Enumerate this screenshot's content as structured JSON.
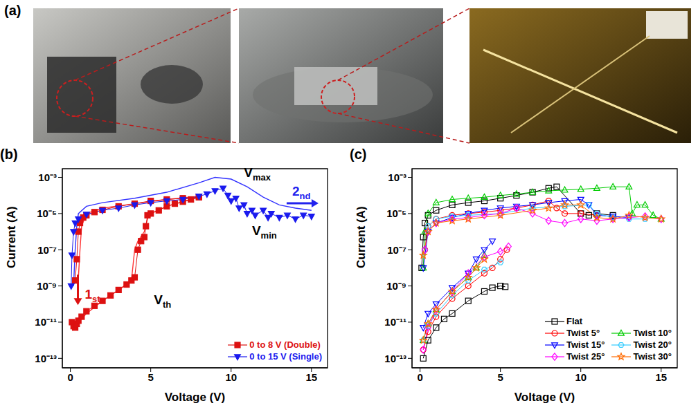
{
  "photo_panel": {
    "label": "(a)"
  },
  "chart_data": [
    {
      "type": "line",
      "title": "(b)",
      "x_label": "Voltage (V)",
      "y_label": "Current (A)",
      "log": "y",
      "grid": false,
      "legend": "lower right",
      "xlim": [
        -0.5,
        16
      ],
      "xticks": [
        0,
        5,
        10,
        15
      ],
      "ylim": [
        3e-14,
        0.003
      ],
      "yticks": [
        {
          "value": 1e-13,
          "label": "10⁻¹³"
        },
        {
          "value": 1e-11,
          "label": "10⁻¹¹"
        },
        {
          "value": 1e-09,
          "label": "10⁻⁹"
        },
        {
          "value": 1e-07,
          "label": "10⁻⁷"
        },
        {
          "value": 1e-05,
          "label": "10⁻⁵"
        },
        {
          "value": 0.001,
          "label": "10⁻³"
        }
      ],
      "series": [
        {
          "color": "#ff3333",
          "marker": "none",
          "line_style": "solid",
          "x": [
            0.5,
            1,
            2,
            3,
            3.8,
            4,
            4.2,
            4.6,
            4.8,
            5,
            6,
            7,
            8,
            null,
            0.5,
            0.6,
            0.7,
            1,
            2,
            4,
            6,
            8
          ],
          "values": [
            1e-11,
            3e-11,
            1.5e-10,
            6e-10,
            2e-09,
            1e-07,
            3e-07,
            1e-06,
            5e-06,
            1e-05,
            2.5e-05,
            4.5e-05,
            8e-05,
            null,
            3e-09,
            1e-07,
            2e-06,
            1e-05,
            2e-05,
            3.5e-05,
            6e-05,
            9e-05
          ]
        },
        {
          "color": "#3333ff",
          "marker": "none",
          "line_style": "solid",
          "x": [
            0.2,
            0.3,
            0.4,
            0.5,
            1,
            2,
            4,
            6,
            8,
            9,
            10,
            11,
            12,
            13,
            14,
            15
          ],
          "values": [
            1e-09,
            1e-07,
            2e-06,
            1e-05,
            2.5e-05,
            4e-05,
            7e-05,
            0.00015,
            0.0005,
            0.001,
            0.0008,
            0.0003,
            8e-05,
            3e-05,
            2e-05,
            1.5e-05
          ]
        },
        {
          "name": "0 to 8 V (Double)",
          "color": "#dd1111",
          "marker": "square",
          "line_style": "solid",
          "x": [
            0.1,
            0.2,
            0.3,
            0.4,
            0.5,
            0.7,
            1,
            1.5,
            2,
            2.5,
            3,
            3.5,
            3.8,
            4,
            4.2,
            4.4,
            4.6,
            4.7,
            4.8,
            5,
            5.5,
            6,
            6.5,
            7,
            7.5,
            8,
            null,
            0.3,
            0.4,
            0.5,
            0.6,
            0.8,
            1,
            1.5,
            2,
            3,
            4,
            5,
            6,
            7,
            8
          ],
          "values": [
            1e-11,
            6e-12,
            5e-12,
            8e-12,
            1.2e-11,
            2e-11,
            4e-11,
            8e-11,
            1.5e-10,
            3e-10,
            6e-10,
            1.2e-09,
            2e-09,
            3e-09,
            1e-07,
            3e-07,
            5e-07,
            2e-06,
            8e-06,
            1e-05,
            1.5e-05,
            2.5e-05,
            3.5e-05,
            4.5e-05,
            6e-05,
            8e-05,
            null,
            2e-09,
            3e-08,
            1e-06,
            3e-06,
            6e-06,
            8e-06,
            1.2e-05,
            1.6e-05,
            2.5e-05,
            3.5e-05,
            5e-05,
            6e-05,
            7e-05,
            8e-05
          ]
        },
        {
          "name": "0 to 15 V (Single)",
          "color": "#1a1aee",
          "marker": "triangle-down",
          "line_style": "solid",
          "x": [
            0.05,
            0.1,
            0.2,
            0.3,
            0.5,
            1,
            2,
            3,
            4,
            5,
            6,
            7,
            8,
            8.5,
            9,
            9.5,
            9.8,
            10,
            10.3,
            10.5,
            10.8,
            11,
            11.3,
            11.5,
            12,
            12.3,
            12.5,
            13,
            13.5,
            14,
            14.5,
            15
          ],
          "values": [
            1e-09,
            5e-08,
            1e-06,
            3e-06,
            5e-06,
            9e-06,
            1.5e-05,
            2e-05,
            3e-05,
            4e-05,
            5e-05,
            6e-05,
            9e-05,
            0.00012,
            0.00018,
            0.00025,
            0.0001,
            5e-05,
            7e-05,
            2e-05,
            3e-05,
            1e-05,
            1.5e-05,
            8e-06,
            1.5e-05,
            6e-06,
            1e-05,
            6e-06,
            8e-06,
            5e-06,
            8e-06,
            7e-06
          ]
        }
      ],
      "annotations": [
        {
          "text": "V",
          "subscript": "max",
          "x": 10.8,
          "y": 0.0016,
          "color": "#000000"
        },
        {
          "text": "V",
          "subscript": "min",
          "x": 11.3,
          "y": 1e-06,
          "color": "#000000"
        },
        {
          "text": "V",
          "subscript": "th",
          "x": 5.2,
          "y": 1.5e-10,
          "color": "#000000"
        },
        {
          "text": "1",
          "subscript": "st",
          "x": 0.9,
          "y": 3e-10,
          "color": "#dd1111",
          "marker": "arrow-down"
        },
        {
          "text": "2",
          "subscript": "nd",
          "x": 13.8,
          "y": 0.00015,
          "color": "#2222ee",
          "marker": "arrow-right"
        }
      ]
    },
    {
      "type": "line",
      "title": "(c)",
      "x_label": "Voltage (V)",
      "y_label": "Current (A)",
      "log": "y",
      "grid": false,
      "legend": "lower right",
      "xlim": [
        -0.5,
        16
      ],
      "xticks": [
        0,
        5,
        10,
        15
      ],
      "ylim": [
        3e-14,
        0.003
      ],
      "yticks": [
        {
          "value": 1e-13,
          "label": "10⁻¹³"
        },
        {
          "value": 1e-11,
          "label": "10⁻¹¹"
        },
        {
          "value": 1e-09,
          "label": "10⁻⁹"
        },
        {
          "value": 1e-07,
          "label": "10⁻⁷"
        },
        {
          "value": 1e-05,
          "label": "10⁻⁵"
        },
        {
          "value": 0.001,
          "label": "10⁻³"
        }
      ],
      "series": [
        {
          "name": "Flat",
          "color": "#000000",
          "marker": "open-square",
          "line_style": "solid",
          "x": [
            0.2,
            0.5,
            1,
            1.5,
            2,
            3,
            4,
            4.5,
            5,
            5.3,
            null,
            0.1,
            0.2,
            0.3,
            0.5,
            1,
            2,
            3,
            4,
            5,
            6,
            7,
            8,
            8.5,
            10,
            10.5,
            11,
            12
          ],
          "values": [
            1e-13,
            1e-12,
            5e-12,
            1.5e-11,
            3e-11,
            1.5e-10,
            5e-10,
            8e-10,
            1e-09,
            9e-10,
            null,
            1e-08,
            5e-07,
            3e-06,
            8e-06,
            1.5e-05,
            3e-05,
            4e-05,
            5e-05,
            7e-05,
            0.0001,
            0.00015,
            0.00025,
            0.0003,
            1e-05,
            8e-06,
            1e-05,
            8e-06
          ]
        },
        {
          "name": "Twist 5°",
          "color": "#ff0000",
          "marker": "open-circle",
          "line_style": "solid",
          "x": [
            0.2,
            0.5,
            1,
            2,
            3,
            4,
            4.5,
            5,
            5.4,
            null,
            0.3,
            0.5,
            1,
            2,
            3,
            4,
            5,
            6,
            7,
            8,
            8.5,
            9,
            10,
            11
          ],
          "values": [
            3e-13,
            3e-12,
            2e-11,
            2e-10,
            1e-09,
            5e-09,
            1e-08,
            3e-08,
            1e-07,
            null,
            1e-07,
            2e-06,
            5e-06,
            8e-06,
            1e-05,
            1.2e-05,
            1.5e-05,
            2e-05,
            3e-05,
            5e-05,
            2e-05,
            1e-05,
            1e-05,
            8e-06
          ]
        },
        {
          "name": "Twist 10°",
          "color": "#00cc00",
          "marker": "open-triangle-up",
          "line_style": "solid",
          "x": [
            0.2,
            0.5,
            1,
            2,
            3,
            3.5,
            4,
            null,
            0.2,
            0.3,
            0.5,
            1,
            2,
            3,
            4,
            5,
            6,
            7,
            8,
            9,
            10,
            11,
            12,
            13,
            13.2,
            13.5,
            14,
            14.5,
            15
          ],
          "values": [
            1e-12,
            8e-12,
            5e-11,
            5e-10,
            3e-09,
            1e-08,
            5e-08,
            null,
            1e-08,
            1e-06,
            1e-05,
            4e-05,
            6e-05,
            7e-05,
            8e-05,
            0.0001,
            0.00012,
            0.00015,
            0.00018,
            0.0002,
            0.00022,
            0.00025,
            0.0003,
            0.0003,
            1e-05,
            3e-05,
            3e-05,
            8e-06,
            5e-06
          ]
        },
        {
          "name": "Twist 15°",
          "color": "#0000ff",
          "marker": "open-triangle-down",
          "line_style": "solid",
          "x": [
            0.2,
            0.5,
            1,
            2,
            3,
            3.5,
            4,
            4.5,
            null,
            0.2,
            0.5,
            1,
            2,
            3,
            4,
            5,
            6,
            7,
            8,
            9,
            10,
            10.5,
            11,
            12,
            13
          ],
          "values": [
            5e-12,
            3e-11,
            1e-10,
            8e-10,
            5e-09,
            3e-08,
            1e-07,
            3e-07,
            null,
            1e-08,
            1e-06,
            3e-06,
            6e-06,
            1e-05,
            1.5e-05,
            2e-05,
            2.5e-05,
            3e-05,
            4e-05,
            5e-05,
            6e-05,
            3e-05,
            8e-06,
            7e-06,
            6e-06
          ]
        },
        {
          "name": "Twist 20°",
          "color": "#33ccff",
          "marker": "open-hexagon",
          "line_style": "solid",
          "x": [
            0.2,
            0.5,
            1,
            2,
            3,
            4,
            5,
            null,
            0.3,
            0.5,
            1,
            2,
            3,
            5,
            7,
            9,
            10.5,
            11,
            12,
            13,
            14
          ],
          "values": [
            1e-12,
            6e-12,
            3e-11,
            3e-10,
            2e-09,
            8e-09,
            2e-08,
            null,
            1e-07,
            2e-06,
            5e-06,
            7e-06,
            8e-06,
            1e-05,
            2e-05,
            2.5e-05,
            3e-05,
            1e-05,
            6e-06,
            5e-06,
            5e-06
          ]
        },
        {
          "name": "Twist 25°",
          "color": "#ff00ff",
          "marker": "open-diamond",
          "line_style": "solid",
          "x": [
            0.2,
            0.5,
            1,
            2,
            3,
            4,
            5,
            5.5,
            null,
            0.3,
            0.5,
            1,
            2,
            3,
            4,
            5,
            6,
            7,
            8,
            9,
            10,
            11,
            12,
            13,
            14,
            15
          ],
          "values": [
            3e-13,
            5e-12,
            5e-11,
            5e-10,
            5e-09,
            4e-08,
            8e-08,
            1.5e-07,
            null,
            1e-07,
            1e-06,
            3e-06,
            5e-06,
            6e-06,
            8e-06,
            1e-05,
            2e-05,
            1e-05,
            4e-06,
            3e-06,
            5e-06,
            4e-06,
            5e-06,
            6e-06,
            7e-06,
            5e-06
          ]
        },
        {
          "name": "Twist 30°",
          "color": "#ff6a00",
          "marker": "open-star",
          "line_style": "solid",
          "x": [
            0.2,
            0.5,
            1,
            2,
            3,
            3.5,
            4,
            null,
            0.2,
            0.5,
            1,
            2,
            3,
            5,
            7,
            8,
            9,
            10,
            11,
            12,
            13,
            14,
            15
          ],
          "values": [
            1e-12,
            8e-12,
            5e-11,
            5e-10,
            3e-09,
            1e-08,
            3e-08,
            null,
            5e-08,
            1e-06,
            3e-06,
            4e-06,
            5e-06,
            8e-06,
            1.5e-05,
            2e-05,
            3e-05,
            3e-05,
            6e-06,
            5e-06,
            8e-06,
            6e-06,
            5e-06
          ]
        }
      ]
    }
  ]
}
